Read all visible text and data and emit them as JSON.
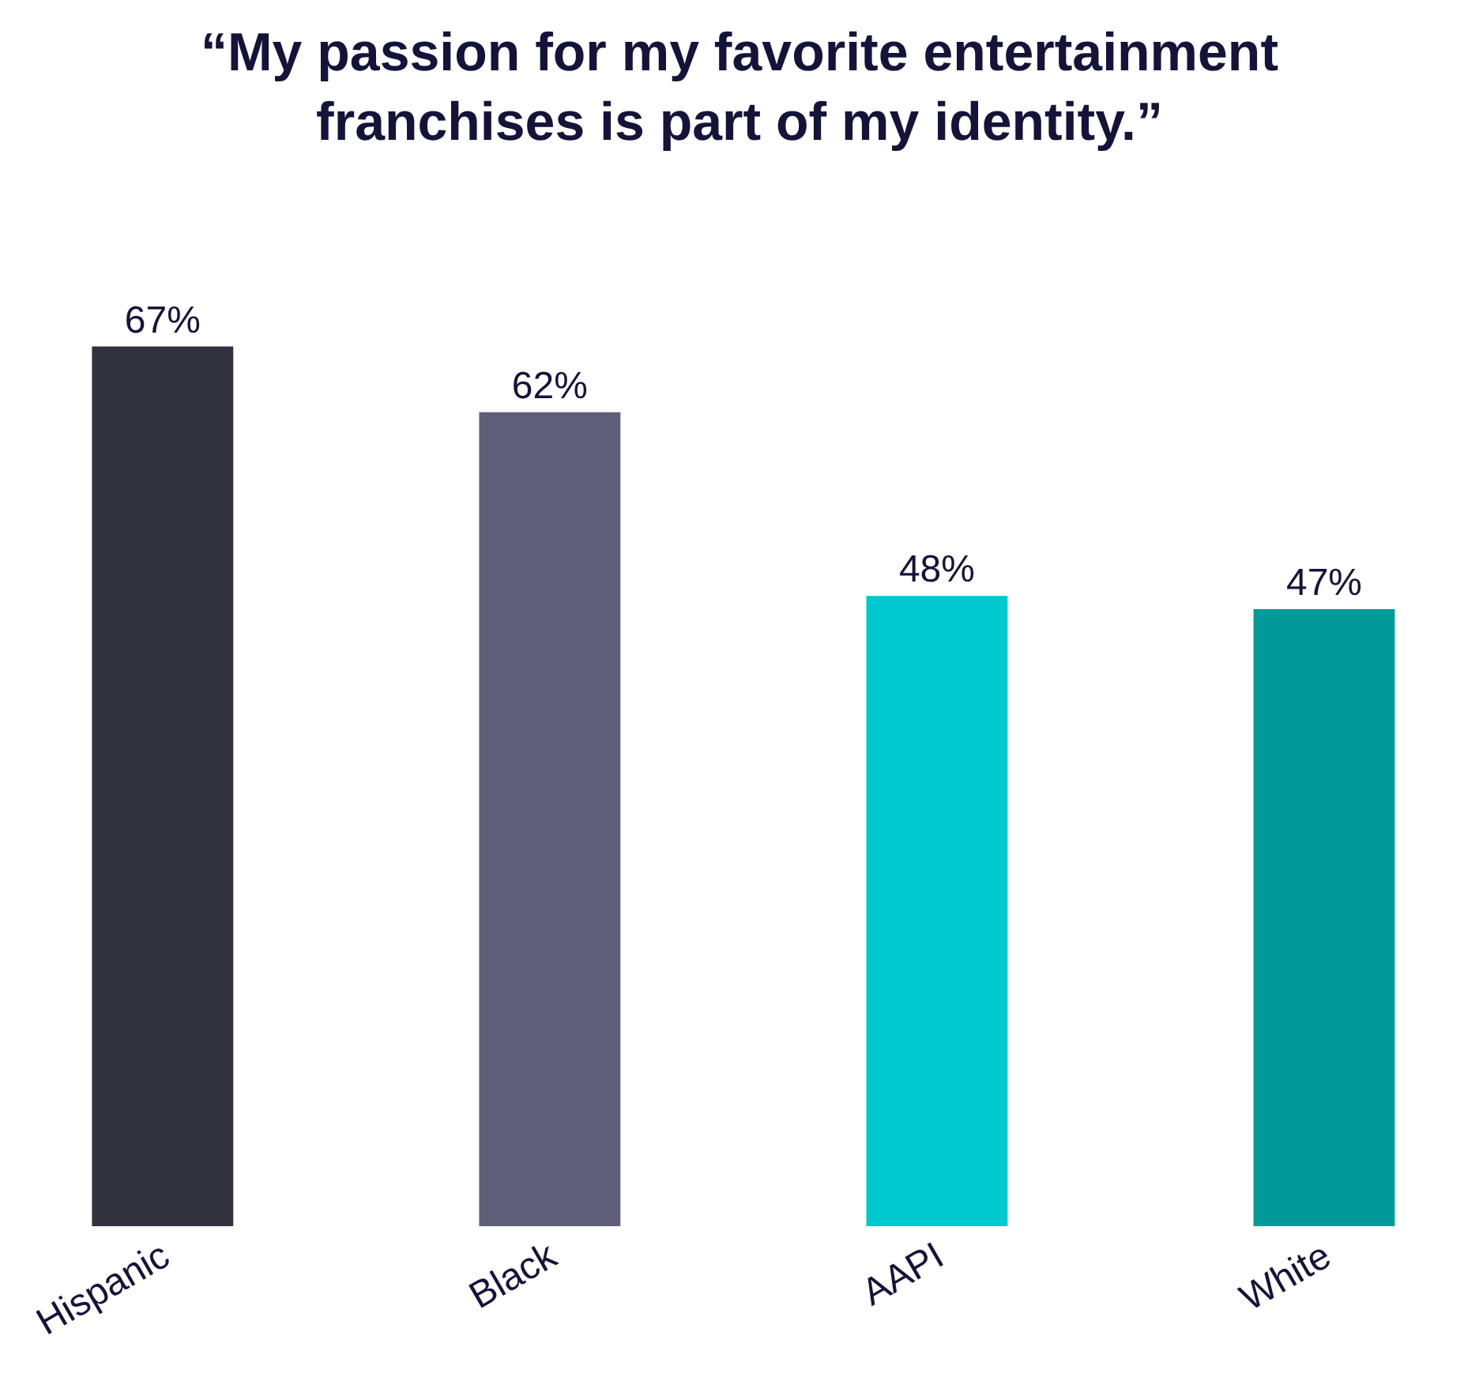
{
  "chart_data": {
    "type": "bar",
    "title": "“My passion for my favorite entertainment franchises is part of my identity.”",
    "categories": [
      "Hispanic",
      "Black",
      "AAPI",
      "White"
    ],
    "values": [
      67,
      62,
      48,
      47
    ],
    "colors": [
      "#33323f",
      "#5f5f7a",
      "#00c8cf",
      "#009b98"
    ],
    "data_labels": true,
    "value_labels": [
      "67%",
      "62%",
      "48%",
      "47%"
    ]
  }
}
